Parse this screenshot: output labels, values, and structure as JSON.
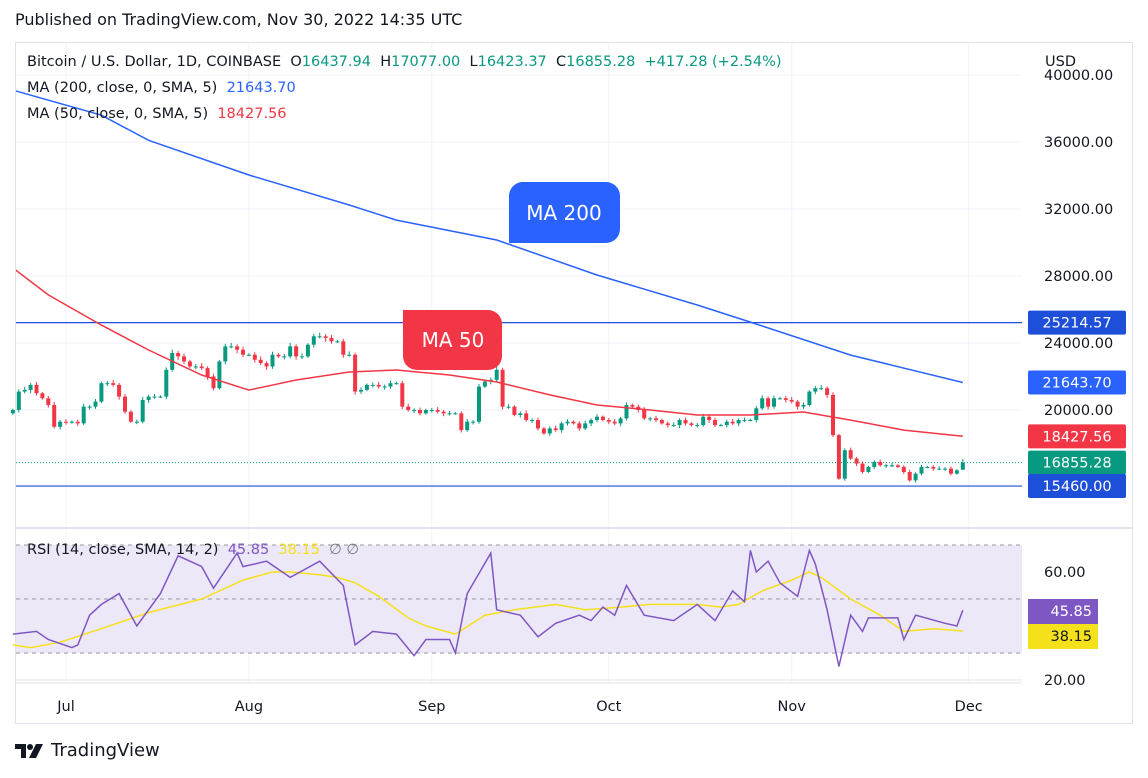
{
  "header": {
    "published": "Published on TradingView.com, Nov 30, 2022 14:35 UTC"
  },
  "legend": {
    "symbol": "Bitcoin / U.S. Dollar, 1D, COINBASE",
    "o_label": "O",
    "o": "16437.94",
    "h_label": "H",
    "h": "17077.00",
    "l_label": "L",
    "l": "16423.37",
    "c_label": "C",
    "c": "16855.28",
    "change": "+417.28 (+2.54%)",
    "ma200": "MA (200, close, 0, SMA, 5)",
    "ma200_value": "21643.70",
    "ma50": "MA (50, close, 0, SMA, 5)",
    "ma50_value": "18427.56",
    "rsi": "RSI (14, close, SMA, 14, 2)",
    "rsi_value": "45.85",
    "rsi_sma_value": "38.15",
    "rsi_extra": "∅  ∅"
  },
  "annotations": {
    "ma200_label": "MA 200",
    "ma50_label": "MA 50"
  },
  "colors": {
    "up": "#089981",
    "down": "#f23645",
    "ma200": "#2962ff",
    "ma50": "#f23645",
    "hline": "#1e4fd8",
    "rsi": "#7e57c2",
    "rsi_sma": "#f5e11b",
    "price": "#089981"
  },
  "brand": "TradingView",
  "chart_data": [
    {
      "type": "candlestick",
      "currency": "USD",
      "x_range": [
        "2022-06-22",
        "2022-11-30"
      ],
      "x_ticks": [
        [
          "2022-07-01",
          "Jul"
        ],
        [
          "2022-08-01",
          "Aug"
        ],
        [
          "2022-09-01",
          "Sep"
        ],
        [
          "2022-10-01",
          "Oct"
        ],
        [
          "2022-11-01",
          "Nov"
        ],
        [
          "2022-12-01",
          "Dec"
        ]
      ],
      "y_ticks": [
        "40000.00",
        "36000.00",
        "32000.00",
        "28000.00",
        "24000.00",
        "20000.00"
      ],
      "y_tick_values": [
        40000,
        36000,
        32000,
        28000,
        24000,
        20000
      ],
      "closes": [
        20000,
        21100,
        21200,
        21500,
        21000,
        20700,
        20300,
        19000,
        19300,
        19250,
        19300,
        19200,
        20200,
        20200,
        20500,
        21600,
        21600,
        21500,
        20800,
        19900,
        19300,
        19300,
        20600,
        20800,
        20800,
        20800,
        22400,
        23400,
        23200,
        22900,
        22600,
        22600,
        22500,
        22000,
        21300,
        22900,
        23800,
        23800,
        23600,
        23300,
        23300,
        23000,
        22800,
        22600,
        23300,
        23200,
        23200,
        23800,
        23200,
        23200,
        23900,
        24400,
        24400,
        24300,
        24100,
        24100,
        23300,
        23300,
        21100,
        21200,
        21500,
        21500,
        21400,
        21400,
        21600,
        21600,
        20200,
        20000,
        20000,
        19800,
        20000,
        20000,
        19900,
        19800,
        19800,
        19800,
        18800,
        19300,
        19300,
        21400,
        21700,
        21800,
        22400,
        20200,
        20200,
        19700,
        19800,
        19400,
        19400,
        18900,
        18600,
        18900,
        18800,
        19200,
        19300,
        19200,
        18900,
        19200,
        19400,
        19600,
        19400,
        19300,
        19200,
        19500,
        20300,
        20200,
        20000,
        19500,
        19500,
        19400,
        19200,
        19100,
        19100,
        19400,
        19200,
        19100,
        19100,
        19600,
        19400,
        19100,
        19100,
        19300,
        19200,
        19400,
        19400,
        19400,
        20100,
        20700,
        20200,
        20700,
        20700,
        20600,
        20500,
        20200,
        20300,
        21100,
        21300,
        21300,
        20900,
        18500,
        15900,
        17600,
        17100,
        16800,
        16300,
        16600,
        16900,
        16700,
        16700,
        16700,
        16600,
        16300,
        15800,
        16200,
        16600,
        16600,
        16500,
        16500,
        16500,
        16200,
        16400,
        16855.28
      ],
      "last": {
        "open": 16437.94,
        "high": 17077.0,
        "low": 16423.37,
        "close": 16855.28
      },
      "series": [
        {
          "name": "MA (200, close, 0, SMA, 5)",
          "points": [
            [
              "2022-06-22",
              39100
            ],
            [
              "2022-07-07",
              37600
            ],
            [
              "2022-07-15",
              36100
            ],
            [
              "2022-08-01",
              34030
            ],
            [
              "2022-08-18",
              32240
            ],
            [
              "2022-08-26",
              31340
            ],
            [
              "2022-09-12",
              30150
            ],
            [
              "2022-09-29",
              28060
            ],
            [
              "2022-10-16",
              26270
            ],
            [
              "2022-10-25",
              25250
            ],
            [
              "2022-11-11",
              23280
            ],
            [
              "2022-11-30",
              21643.7
            ]
          ]
        },
        {
          "name": "MA (50, close, 0, SMA, 5)",
          "points": [
            [
              "2022-06-22",
              28480
            ],
            [
              "2022-06-28",
              26870
            ],
            [
              "2022-07-07",
              25070
            ],
            [
              "2022-07-15",
              23580
            ],
            [
              "2022-07-24",
              22090
            ],
            [
              "2022-08-01",
              21190
            ],
            [
              "2022-08-09",
              21790
            ],
            [
              "2022-08-18",
              22270
            ],
            [
              "2022-08-26",
              22390
            ],
            [
              "2022-09-04",
              22090
            ],
            [
              "2022-09-12",
              21670
            ],
            [
              "2022-09-21",
              20900
            ],
            [
              "2022-09-29",
              20300
            ],
            [
              "2022-10-08",
              20000
            ],
            [
              "2022-10-16",
              19700
            ],
            [
              "2022-10-25",
              19700
            ],
            [
              "2022-11-03",
              19880
            ],
            [
              "2022-11-11",
              19400
            ],
            [
              "2022-11-20",
              18800
            ],
            [
              "2022-11-30",
              18427.56
            ]
          ]
        }
      ],
      "horizontal_lines": [
        25214.57,
        15460.0
      ],
      "price_labels": [
        {
          "value": "25214.57",
          "num": 25214.57,
          "kind": "hline"
        },
        {
          "value": "21643.70",
          "num": 21643.7,
          "kind": "ma200"
        },
        {
          "value": "18427.56",
          "num": 18427.56,
          "kind": "ma50"
        },
        {
          "value": "16855.28",
          "num": 16855.28,
          "kind": "price"
        },
        {
          "value": "15460.00",
          "num": 15460.0,
          "kind": "hline"
        }
      ]
    },
    {
      "type": "line",
      "title": "RSI (14, close, SMA, 14, 2)",
      "y_ticks": [
        "60.00",
        "20.00"
      ],
      "y_tick_values": [
        60,
        20
      ],
      "bands": [
        70,
        50,
        30
      ],
      "series": [
        {
          "name": "RSI",
          "points": [
            [
              "2022-06-22",
              37
            ],
            [
              "2022-06-26",
              38
            ],
            [
              "2022-06-28",
              35
            ],
            [
              "2022-07-02",
              32
            ],
            [
              "2022-07-03",
              33
            ],
            [
              "2022-07-05",
              44
            ],
            [
              "2022-07-07",
              48
            ],
            [
              "2022-07-10",
              52
            ],
            [
              "2022-07-13",
              40
            ],
            [
              "2022-07-17",
              52
            ],
            [
              "2022-07-20",
              66
            ],
            [
              "2022-07-24",
              62
            ],
            [
              "2022-07-26",
              54
            ],
            [
              "2022-07-30",
              67
            ],
            [
              "2022-07-31",
              62
            ],
            [
              "2022-08-04",
              64
            ],
            [
              "2022-08-08",
              58
            ],
            [
              "2022-08-13",
              64
            ],
            [
              "2022-08-17",
              55
            ],
            [
              "2022-08-19",
              33
            ],
            [
              "2022-08-22",
              38
            ],
            [
              "2022-08-26",
              37
            ],
            [
              "2022-08-29",
              29
            ],
            [
              "2022-08-31",
              35
            ],
            [
              "2022-09-04",
              35
            ],
            [
              "2022-09-05",
              30
            ],
            [
              "2022-09-07",
              52
            ],
            [
              "2022-09-11",
              67
            ],
            [
              "2022-09-12",
              46
            ],
            [
              "2022-09-16",
              44
            ],
            [
              "2022-09-19",
              36
            ],
            [
              "2022-09-22",
              41
            ],
            [
              "2022-09-26",
              44
            ],
            [
              "2022-09-28",
              42
            ],
            [
              "2022-09-30",
              47
            ],
            [
              "2022-10-02",
              44
            ],
            [
              "2022-10-04",
              55
            ],
            [
              "2022-10-07",
              44
            ],
            [
              "2022-10-12",
              42
            ],
            [
              "2022-10-16",
              48
            ],
            [
              "2022-10-19",
              42
            ],
            [
              "2022-10-22",
              53
            ],
            [
              "2022-10-24",
              49
            ],
            [
              "2022-10-25",
              68
            ],
            [
              "2022-10-26",
              60
            ],
            [
              "2022-10-28",
              64
            ],
            [
              "2022-10-30",
              56
            ],
            [
              "2022-11-02",
              51
            ],
            [
              "2022-11-04",
              68
            ],
            [
              "2022-11-05",
              63
            ],
            [
              "2022-11-07",
              46
            ],
            [
              "2022-11-09",
              25
            ],
            [
              "2022-11-11",
              44
            ],
            [
              "2022-11-13",
              38
            ],
            [
              "2022-11-14",
              43
            ],
            [
              "2022-11-19",
              43
            ],
            [
              "2022-11-20",
              35
            ],
            [
              "2022-11-22",
              44
            ],
            [
              "2022-11-27",
              41
            ],
            [
              "2022-11-29",
              40
            ],
            [
              "2022-11-30",
              45.85
            ]
          ]
        },
        {
          "name": "RSI SMA",
          "points": [
            [
              "2022-06-22",
              33
            ],
            [
              "2022-06-25",
              32
            ],
            [
              "2022-06-30",
              34
            ],
            [
              "2022-07-07",
              39
            ],
            [
              "2022-07-15",
              45
            ],
            [
              "2022-07-24",
              50
            ],
            [
              "2022-07-31",
              57
            ],
            [
              "2022-08-05",
              60
            ],
            [
              "2022-08-08",
              60
            ],
            [
              "2022-08-13",
              59
            ],
            [
              "2022-08-16",
              58
            ],
            [
              "2022-08-19",
              56
            ],
            [
              "2022-08-23",
              51
            ],
            [
              "2022-08-28",
              43
            ],
            [
              "2022-08-31",
              40
            ],
            [
              "2022-09-05",
              37
            ],
            [
              "2022-09-10",
              44
            ],
            [
              "2022-09-15",
              46
            ],
            [
              "2022-09-22",
              48
            ],
            [
              "2022-09-27",
              46
            ],
            [
              "2022-10-03",
              47
            ],
            [
              "2022-10-08",
              48
            ],
            [
              "2022-10-16",
              48
            ],
            [
              "2022-10-20",
              47
            ],
            [
              "2022-10-23",
              48
            ],
            [
              "2022-10-27",
              53
            ],
            [
              "2022-11-01",
              57
            ],
            [
              "2022-11-04",
              60
            ],
            [
              "2022-11-06",
              58
            ],
            [
              "2022-11-11",
              50
            ],
            [
              "2022-11-16",
              44
            ],
            [
              "2022-11-20",
              38
            ],
            [
              "2022-11-25",
              39
            ],
            [
              "2022-11-30",
              38.15
            ]
          ]
        }
      ],
      "value_labels": [
        "45.85",
        "38.15"
      ]
    }
  ]
}
